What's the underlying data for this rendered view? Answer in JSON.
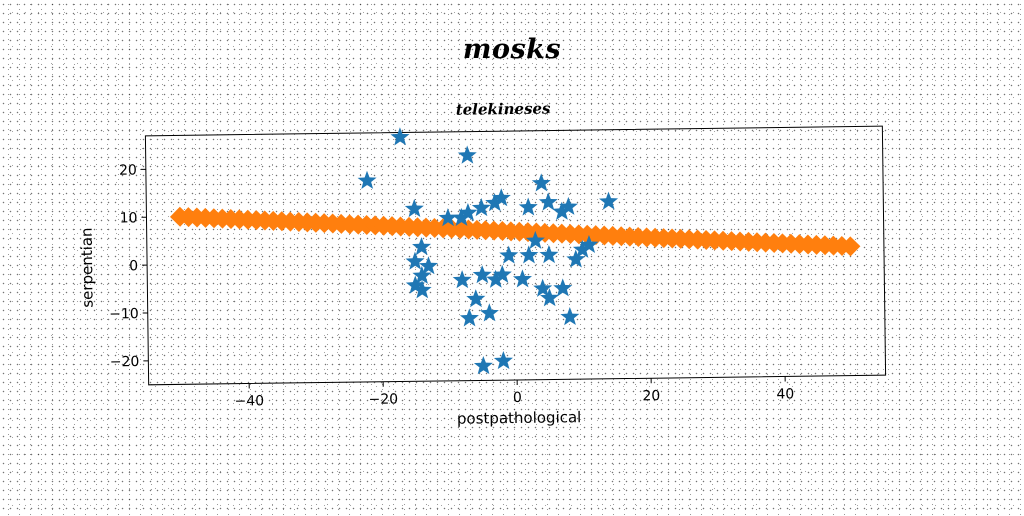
{
  "chart_data": {
    "type": "scatter",
    "suptitle": "mosks",
    "title": "telekineses",
    "xlabel": "postpathological",
    "ylabel": "serpentian",
    "xlim": [
      -55,
      55
    ],
    "ylim": [
      -25,
      27
    ],
    "xticks": [
      -40,
      -20,
      0,
      20,
      40
    ],
    "yticks": [
      -20,
      -10,
      0,
      10,
      20
    ],
    "xtick_labels": [
      "−40",
      "−20",
      "0",
      "20",
      "40"
    ],
    "ytick_labels": [
      "−20",
      "−10",
      "0",
      "10",
      "20"
    ],
    "grid": false,
    "colors": {
      "series_stars": "#1f77b4",
      "series_diamonds": "#ff7f0e"
    },
    "series": [
      {
        "marker": "star",
        "color": "#1f77b4",
        "points": [
          [
            -17,
            26
          ],
          [
            -7,
            22
          ],
          [
            -22,
            17
          ],
          [
            -15,
            11
          ],
          [
            -10,
            9
          ],
          [
            -8,
            9
          ],
          [
            -7,
            10
          ],
          [
            -5,
            11
          ],
          [
            -3,
            12
          ],
          [
            -2,
            13
          ],
          [
            2,
            11
          ],
          [
            4,
            16
          ],
          [
            5,
            12
          ],
          [
            7,
            10
          ],
          [
            8,
            11
          ],
          [
            14,
            12
          ],
          [
            -14,
            3
          ],
          [
            -15,
            0
          ],
          [
            -13,
            -1
          ],
          [
            -14,
            -3
          ],
          [
            -15,
            -5
          ],
          [
            -14,
            -6
          ],
          [
            -8,
            -4
          ],
          [
            -5,
            -3
          ],
          [
            -3,
            -4
          ],
          [
            -2,
            -3
          ],
          [
            -1,
            1
          ],
          [
            1,
            -4
          ],
          [
            2,
            1
          ],
          [
            3,
            4
          ],
          [
            5,
            1
          ],
          [
            9,
            0
          ],
          [
            10,
            2
          ],
          [
            11,
            3
          ],
          [
            4,
            -6
          ],
          [
            5,
            -8
          ],
          [
            -6,
            -8
          ],
          [
            -7,
            -12
          ],
          [
            -4,
            -11
          ],
          [
            7,
            -6
          ],
          [
            8,
            -12
          ],
          [
            -5,
            -22
          ],
          [
            -2,
            -21
          ]
        ]
      },
      {
        "marker": "diamond",
        "color": "#ff7f0e",
        "x_range": [
          -50,
          50
        ],
        "y_at_x_min": 10,
        "y_at_x_max": 2,
        "point_count": 80
      }
    ]
  }
}
